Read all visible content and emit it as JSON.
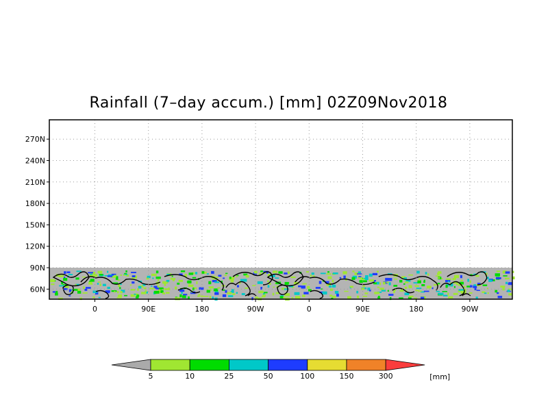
{
  "title": "Rainfall (7–day accum.) [mm] 02Z09Nov2018",
  "map": {
    "lat_labels": [
      "270N",
      "240N",
      "210N",
      "180N",
      "150N",
      "120N",
      "90N",
      "60N"
    ],
    "lat_values": [
      270,
      240,
      210,
      180,
      150,
      120,
      90,
      60
    ],
    "lon_labels": [
      "0",
      "90E",
      "180",
      "90W",
      "0",
      "90E",
      "180",
      "90W"
    ],
    "lon_values": [
      0,
      90,
      180,
      270,
      360,
      450,
      540,
      630
    ],
    "data_lat_range": [
      45,
      90
    ],
    "no_data_color": "#b4b4b4"
  },
  "colorbar": {
    "labels": [
      "5",
      "10",
      "25",
      "50",
      "100",
      "150",
      "300"
    ],
    "unit": "[mm]",
    "colors": [
      "#aaaaaa",
      "#a0e632",
      "#00dc00",
      "#00c8c8",
      "#1e3cff",
      "#e6dc32",
      "#f08228",
      "#fa3c3c"
    ]
  }
}
